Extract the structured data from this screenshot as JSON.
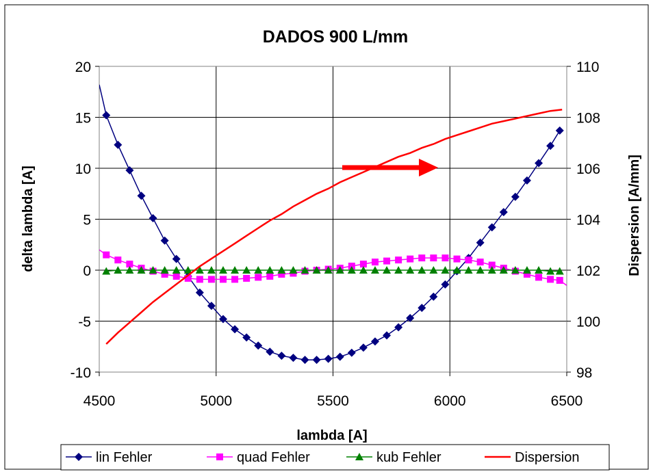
{
  "chart_data": {
    "type": "line",
    "title": "DADOS 900 L/mm",
    "xlabel": "lambda [A]",
    "ylabel": "delta lambda [A]",
    "y2label": "Dispersion [A/mm]",
    "xlim": [
      4500,
      6500
    ],
    "ylim": [
      -10,
      20
    ],
    "y2lim": [
      98,
      110
    ],
    "xticks": [
      "4500",
      "5000",
      "5500",
      "6000",
      "6500"
    ],
    "yticks": [
      "-10",
      "-5",
      "0",
      "5",
      "10",
      "15",
      "20"
    ],
    "y2ticks": [
      "98",
      "100",
      "102",
      "104",
      "106",
      "108",
      "110"
    ],
    "grid": true,
    "legend_position": "bottom",
    "arrow_direction": "right",
    "x": [
      4530,
      4580,
      4630,
      4680,
      4730,
      4780,
      4830,
      4880,
      4930,
      4980,
      5030,
      5080,
      5130,
      5180,
      5230,
      5280,
      5330,
      5380,
      5430,
      5480,
      5530,
      5580,
      5630,
      5680,
      5730,
      5780,
      5830,
      5880,
      5930,
      5980,
      6030,
      6080,
      6130,
      6180,
      6230,
      6280,
      6330,
      6380,
      6430,
      6470
    ],
    "series": [
      {
        "name": "lin Fehler",
        "color": "#000080",
        "marker": "diamond",
        "axis": "left",
        "values": [
          15.2,
          12.3,
          9.8,
          7.3,
          5.1,
          2.9,
          1.1,
          -0.6,
          -2.2,
          -3.5,
          -4.8,
          -5.8,
          -6.6,
          -7.4,
          -8.0,
          -8.4,
          -8.6,
          -8.8,
          -8.8,
          -8.7,
          -8.5,
          -8.1,
          -7.6,
          -7.0,
          -6.4,
          -5.6,
          -4.7,
          -3.7,
          -2.6,
          -1.4,
          -0.1,
          1.2,
          2.7,
          4.2,
          5.7,
          7.2,
          8.8,
          10.5,
          12.2,
          13.7
        ]
      },
      {
        "name": "quad Fehler",
        "color": "#ff00ff",
        "marker": "square",
        "axis": "left",
        "values": [
          1.5,
          1.0,
          0.6,
          0.2,
          -0.1,
          -0.4,
          -0.6,
          -0.8,
          -0.9,
          -0.9,
          -0.9,
          -0.9,
          -0.8,
          -0.7,
          -0.6,
          -0.4,
          -0.3,
          -0.1,
          0.0,
          0.1,
          0.2,
          0.4,
          0.6,
          0.8,
          0.9,
          1.0,
          1.1,
          1.2,
          1.2,
          1.2,
          1.1,
          1.0,
          0.8,
          0.5,
          0.2,
          -0.1,
          -0.4,
          -0.7,
          -0.9,
          -1.0
        ]
      },
      {
        "name": "kub Fehler",
        "color": "#008000",
        "marker": "triangle",
        "axis": "left",
        "values": [
          -0.1,
          0.0,
          0.0,
          0.0,
          0.0,
          0.0,
          0.0,
          0.0,
          0.0,
          0.0,
          0.0,
          0.0,
          0.0,
          0.0,
          0.0,
          0.0,
          0.0,
          0.0,
          0.0,
          0.0,
          0.0,
          0.0,
          0.0,
          0.0,
          0.0,
          0.0,
          0.0,
          0.0,
          0.0,
          0.0,
          0.0,
          0.0,
          0.0,
          0.0,
          0.0,
          0.0,
          0.0,
          0.0,
          -0.1,
          -0.1
        ]
      },
      {
        "name": "Dispersion",
        "color": "#ff0000",
        "marker": "none",
        "axis": "right",
        "x": [
          4530,
          4580,
          4630,
          4680,
          4730,
          4780,
          4830,
          4880,
          4930,
          4980,
          5030,
          5080,
          5130,
          5180,
          5230,
          5280,
          5330,
          5380,
          5430,
          5480,
          5530,
          5580,
          5630,
          5680,
          5730,
          5780,
          5830,
          5880,
          5930,
          5980,
          6030,
          6080,
          6130,
          6180,
          6230,
          6280,
          6330,
          6380,
          6430,
          6480
        ],
        "values": [
          99.1,
          99.55,
          99.95,
          100.35,
          100.75,
          101.1,
          101.45,
          101.8,
          102.15,
          102.45,
          102.75,
          103.05,
          103.35,
          103.65,
          103.95,
          104.2,
          104.5,
          104.75,
          105.0,
          105.2,
          105.45,
          105.65,
          105.85,
          106.05,
          106.25,
          106.45,
          106.6,
          106.8,
          106.95,
          107.15,
          107.3,
          107.45,
          107.6,
          107.75,
          107.85,
          107.95,
          108.05,
          108.15,
          108.25,
          108.3
        ]
      }
    ]
  }
}
